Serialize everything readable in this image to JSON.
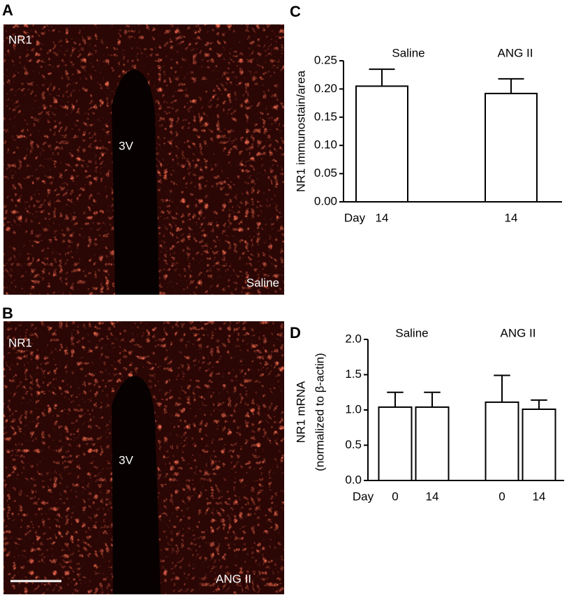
{
  "panels": [
    {
      "letter": "A",
      "stain": "NR1",
      "region": "3V",
      "condition": "Saline"
    },
    {
      "letter": "B",
      "stain": "NR1",
      "region": "3V",
      "condition": "ANG II"
    }
  ],
  "chart_data": [
    {
      "type": "bar",
      "letter": "C",
      "y_label": [
        "NR1 immunostain/area"
      ],
      "x_label": "Day",
      "categories": [
        "14",
        "14"
      ],
      "groups": [
        "Saline",
        "ANG II"
      ],
      "group_of": [
        0,
        1
      ],
      "values": [
        0.205,
        0.192
      ],
      "errors": [
        0.03,
        0.026
      ],
      "ylim": [
        0,
        0.25
      ],
      "yticks": [
        {
          "value": 0,
          "label": "0.00"
        },
        {
          "value": 0.05,
          "label": "0.05"
        },
        {
          "value": 0.1,
          "label": "0.10"
        },
        {
          "value": 0.15,
          "label": "0.15"
        },
        {
          "value": 0.2,
          "label": "0.20"
        },
        {
          "value": 0.25,
          "label": "0.25"
        }
      ],
      "color": "#ffffff"
    },
    {
      "type": "bar",
      "letter": "D",
      "y_label": [
        "NR1 mRNA",
        "(normalized to β-actin)"
      ],
      "x_label": "Day",
      "categories": [
        "0",
        "14",
        "0",
        "14"
      ],
      "groups": [
        "Saline",
        "ANG II"
      ],
      "group_of": [
        0,
        0,
        1,
        1
      ],
      "values": [
        1.04,
        1.04,
        1.11,
        1.01
      ],
      "errors": [
        0.21,
        0.21,
        0.38,
        0.13
      ],
      "ylim": [
        0,
        2.0
      ],
      "yticks": [
        {
          "value": 0,
          "label": "0.0"
        },
        {
          "value": 0.5,
          "label": "0.5"
        },
        {
          "value": 1.0,
          "label": "1.0"
        },
        {
          "value": 1.5,
          "label": "1.5"
        },
        {
          "value": 2.0,
          "label": "2.0"
        }
      ],
      "color": "#ffffff"
    }
  ]
}
